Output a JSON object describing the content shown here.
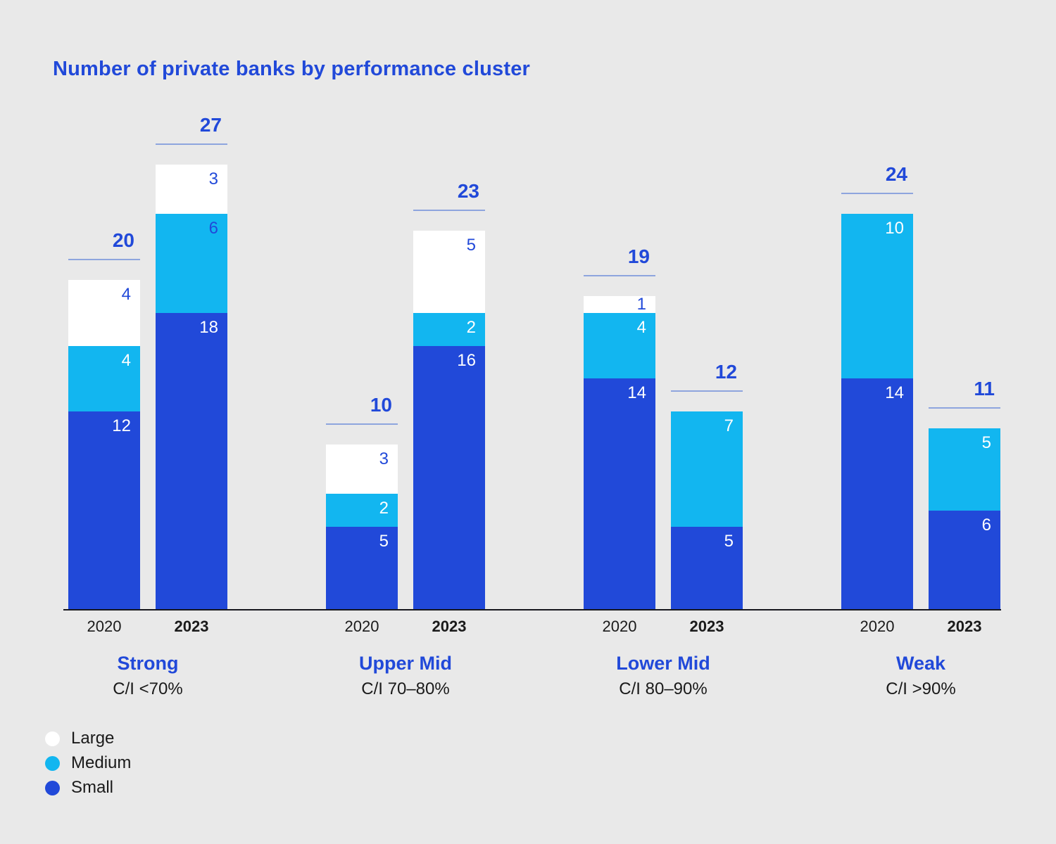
{
  "title": "Number of private banks by performance cluster",
  "colors": {
    "background": "#e9e9e9",
    "accent": "#2149d9",
    "small": "#2149d9",
    "medium": "#12b6f0",
    "large": "#ffffff",
    "axis": "#17171d",
    "text": "#1a1a1a",
    "total_line": "#8ea5de"
  },
  "legend": {
    "items": [
      {
        "label": "Large",
        "color_key": "large"
      },
      {
        "label": "Medium",
        "color_key": "medium"
      },
      {
        "label": "Small",
        "color_key": "small"
      }
    ]
  },
  "chart_data": {
    "type": "bar",
    "stacked": true,
    "title": "Number of private banks by performance cluster",
    "segment_order_bottom_to_top": [
      "Small",
      "Medium",
      "Large"
    ],
    "clusters": [
      {
        "name": "Strong",
        "criterion": "C/I <70%",
        "bars": [
          {
            "year": "2020",
            "total": 20,
            "segments": [
              {
                "name": "Small",
                "value": 12,
                "label_color": "#ffffff"
              },
              {
                "name": "Medium",
                "value": 4,
                "label_color": "#ffffff"
              },
              {
                "name": "Large",
                "value": 4,
                "label_color": "#2149d9"
              }
            ]
          },
          {
            "year": "2023",
            "total": 27,
            "segments": [
              {
                "name": "Small",
                "value": 18,
                "label_color": "#ffffff"
              },
              {
                "name": "Medium",
                "value": 6,
                "label_color": "#2149d9"
              },
              {
                "name": "Large",
                "value": 3,
                "label_color": "#2149d9"
              }
            ]
          }
        ]
      },
      {
        "name": "Upper Mid",
        "criterion": "C/I 70–80%",
        "bars": [
          {
            "year": "2020",
            "total": 10,
            "segments": [
              {
                "name": "Small",
                "value": 5,
                "label_color": "#ffffff"
              },
              {
                "name": "Medium",
                "value": 2,
                "label_color": "#ffffff"
              },
              {
                "name": "Large",
                "value": 3,
                "label_color": "#2149d9"
              }
            ]
          },
          {
            "year": "2023",
            "total": 23,
            "segments": [
              {
                "name": "Small",
                "value": 16,
                "label_color": "#ffffff"
              },
              {
                "name": "Medium",
                "value": 2,
                "label_color": "#ffffff"
              },
              {
                "name": "Large",
                "value": 5,
                "label_color": "#2149d9"
              }
            ]
          }
        ]
      },
      {
        "name": "Lower Mid",
        "criterion": "C/I 80–90%",
        "bars": [
          {
            "year": "2020",
            "total": 19,
            "segments": [
              {
                "name": "Small",
                "value": 14,
                "label_color": "#ffffff"
              },
              {
                "name": "Medium",
                "value": 4,
                "label_color": "#ffffff"
              },
              {
                "name": "Large",
                "value": 1,
                "label_color": "#2149d9"
              }
            ]
          },
          {
            "year": "2023",
            "total": 12,
            "segments": [
              {
                "name": "Small",
                "value": 5,
                "label_color": "#ffffff"
              },
              {
                "name": "Medium",
                "value": 7,
                "label_color": "#ffffff"
              }
            ]
          }
        ]
      },
      {
        "name": "Weak",
        "criterion": "C/I >90%",
        "bars": [
          {
            "year": "2020",
            "total": 24,
            "segments": [
              {
                "name": "Small",
                "value": 14,
                "label_color": "#ffffff"
              },
              {
                "name": "Medium",
                "value": 10,
                "label_color": "#ffffff"
              }
            ]
          },
          {
            "year": "2023",
            "total": 11,
            "segments": [
              {
                "name": "Small",
                "value": 6,
                "label_color": "#ffffff"
              },
              {
                "name": "Medium",
                "value": 5,
                "label_color": "#ffffff"
              }
            ]
          }
        ]
      }
    ]
  }
}
